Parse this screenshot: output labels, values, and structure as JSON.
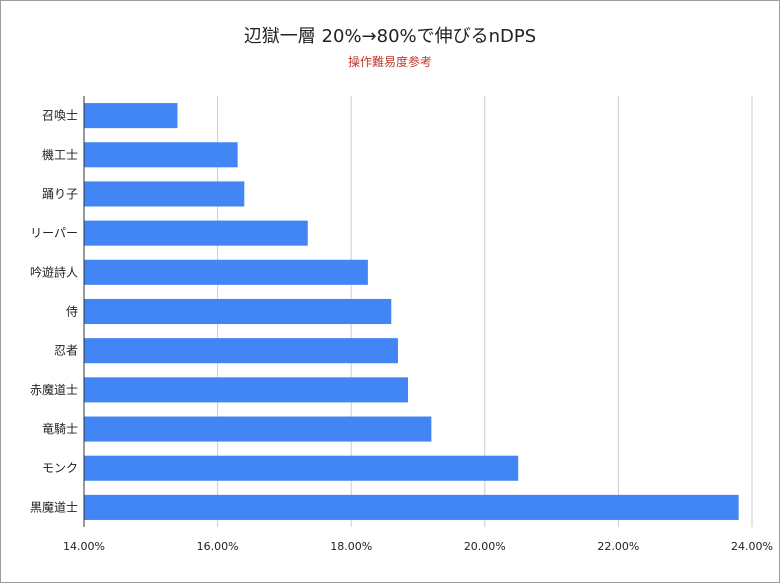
{
  "chart_data": {
    "type": "bar",
    "orientation": "horizontal",
    "title": "辺獄一層 20%→80%で伸びるnDPS",
    "subtitle": "操作難易度参考",
    "categories": [
      "召喚士",
      "機工士",
      "踊り子",
      "リーパー",
      "吟遊詩人",
      "侍",
      "忍者",
      "赤魔道士",
      "竜騎士",
      "モンク",
      "黒魔道士"
    ],
    "values": [
      15.4,
      16.3,
      16.4,
      17.35,
      18.25,
      18.6,
      18.7,
      18.85,
      19.2,
      20.5,
      23.8
    ],
    "xlim": [
      14,
      24
    ],
    "xticks": [
      "14.00%",
      "16.00%",
      "18.00%",
      "20.00%",
      "22.00%",
      "24.00%"
    ],
    "xtick_values": [
      14,
      16,
      18,
      20,
      22,
      24
    ],
    "bar_color": "#4285f4",
    "grid": true
  }
}
